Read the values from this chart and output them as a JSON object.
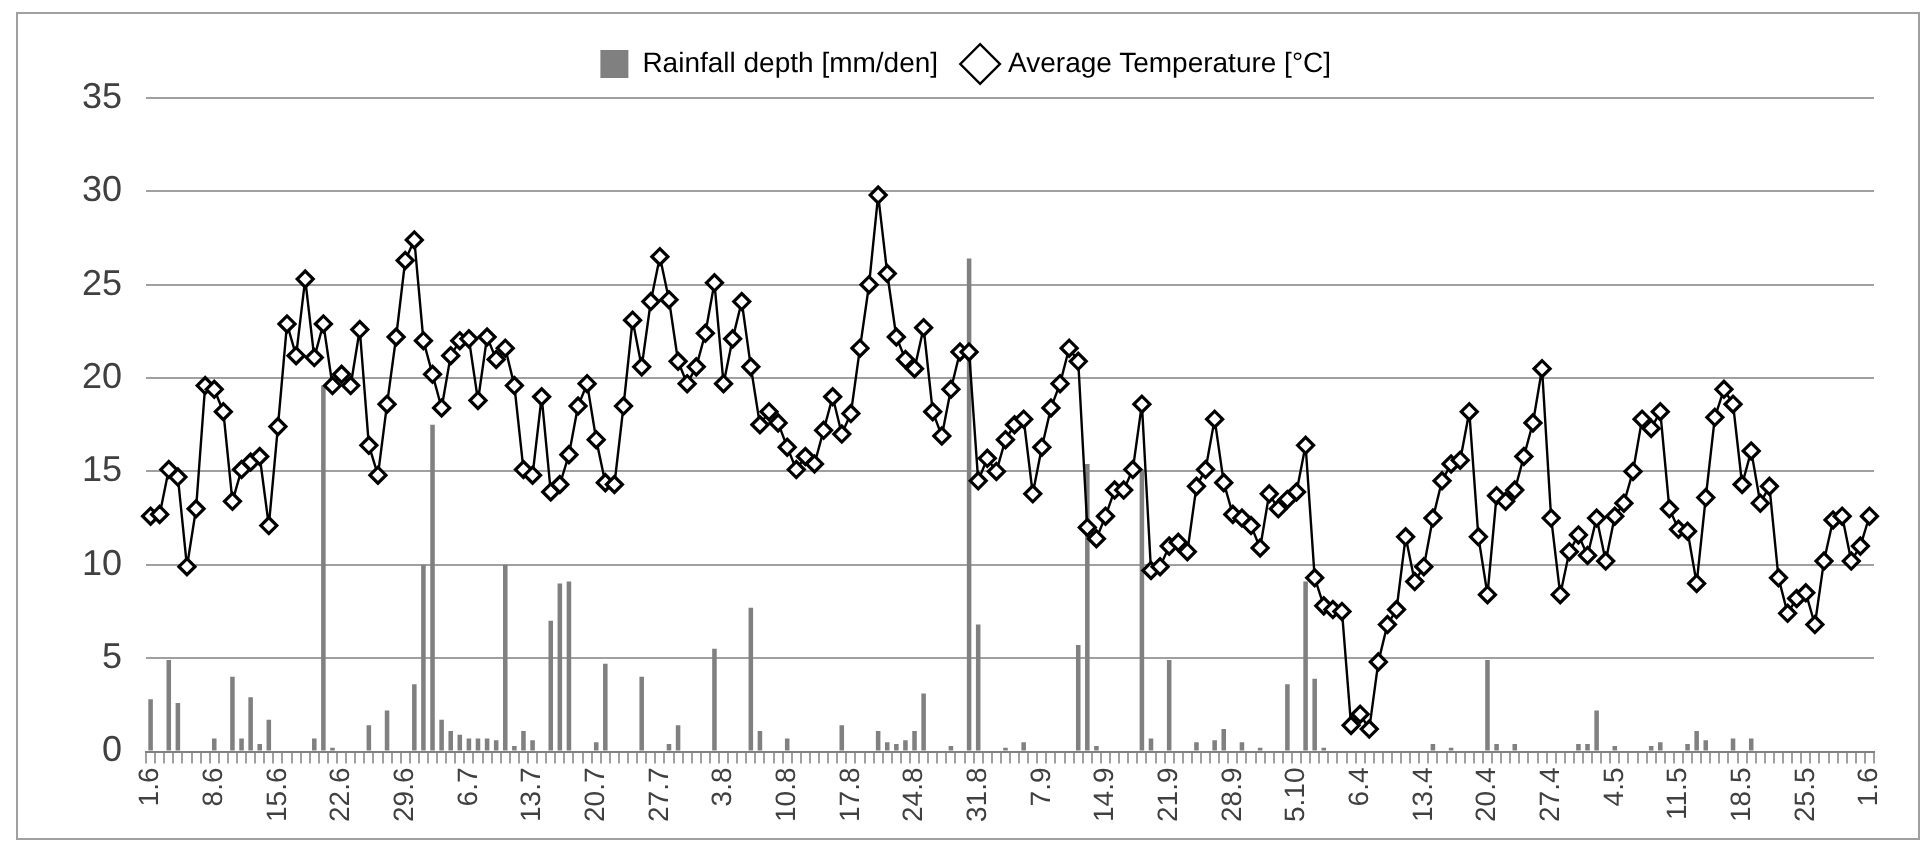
{
  "chart_data": {
    "type": "bar",
    "categories": [
      "1.6",
      null,
      null,
      null,
      null,
      null,
      null,
      "8.6",
      null,
      null,
      null,
      null,
      null,
      null,
      "15.6",
      null,
      null,
      null,
      null,
      null,
      null,
      "22.6",
      null,
      null,
      null,
      null,
      null,
      null,
      "29.6",
      null,
      null,
      null,
      null,
      null,
      null,
      "6.7",
      null,
      null,
      null,
      null,
      null,
      null,
      "13.7",
      null,
      null,
      null,
      null,
      null,
      null,
      "20.7",
      null,
      null,
      null,
      null,
      null,
      null,
      "27.7",
      null,
      null,
      null,
      null,
      null,
      null,
      "3.8",
      null,
      null,
      null,
      null,
      null,
      null,
      "10.8",
      null,
      null,
      null,
      null,
      null,
      null,
      "17.8",
      null,
      null,
      null,
      null,
      null,
      null,
      "24.8",
      null,
      null,
      null,
      null,
      null,
      null,
      "31.8",
      null,
      null,
      null,
      null,
      null,
      null,
      "7.9",
      null,
      null,
      null,
      null,
      null,
      null,
      "14.9",
      null,
      null,
      null,
      null,
      null,
      null,
      "21.9",
      null,
      null,
      null,
      null,
      null,
      null,
      "28.9",
      null,
      null,
      null,
      null,
      null,
      null,
      "5.10",
      null,
      null,
      null,
      null,
      null,
      null,
      "6.4",
      null,
      null,
      null,
      null,
      null,
      null,
      "13.4",
      null,
      null,
      null,
      null,
      null,
      null,
      "20.4",
      null,
      null,
      null,
      null,
      null,
      null,
      "27.4",
      null,
      null,
      null,
      null,
      null,
      null,
      "4.5",
      null,
      null,
      null,
      null,
      null,
      null,
      "11.5",
      null,
      null,
      null,
      null,
      null,
      null,
      "18.5",
      null,
      null,
      null,
      null,
      null,
      null,
      "25.5",
      null,
      null,
      null,
      null,
      null,
      null,
      "1.6"
    ],
    "series": [
      {
        "name": "Rainfall depth [mm/den]",
        "color": "#808080",
        "values": [
          2.8,
          0,
          4.9,
          2.6,
          0,
          0,
          0,
          0.7,
          0,
          4.0,
          0.7,
          2.9,
          0.4,
          1.7,
          0,
          0,
          0,
          0,
          0.7,
          19.6,
          0.2,
          0,
          0,
          0,
          1.4,
          0,
          2.2,
          0,
          0,
          3.6,
          10.0,
          17.5,
          1.7,
          1.1,
          0.9,
          0.7,
          0.7,
          0.7,
          0.6,
          10.0,
          0.3,
          1.1,
          0.6,
          0,
          7.0,
          9.0,
          9.1,
          0,
          0,
          0.5,
          4.7,
          0,
          0,
          0,
          4.0,
          0,
          0,
          0.4,
          1.4,
          0,
          0,
          0,
          5.5,
          0,
          0,
          0,
          7.7,
          1.1,
          0,
          0,
          0.7,
          0,
          0,
          0,
          0,
          0,
          1.4,
          0,
          0,
          0,
          1.1,
          0.5,
          0.4,
          0.6,
          1.1,
          3.1,
          0,
          0,
          0.3,
          0,
          26.4,
          6.8,
          0,
          0,
          0.2,
          0,
          0.5,
          0,
          0,
          0,
          0,
          0,
          5.7,
          15.4,
          0.3,
          0,
          0,
          0,
          0,
          15.1,
          0.7,
          0,
          4.9,
          0,
          0,
          0.5,
          0,
          0.6,
          1.2,
          0,
          0.5,
          0,
          0.2,
          0,
          0,
          3.6,
          0,
          9.1,
          3.9,
          0.2,
          0,
          0,
          0,
          0,
          0,
          0,
          0,
          0,
          0,
          0,
          0,
          0.4,
          0,
          0.2,
          0,
          0,
          0,
          4.9,
          0.4,
          0,
          0.4,
          0,
          0,
          0,
          0,
          0,
          0,
          0.4,
          0.4,
          2.2,
          0,
          0.3,
          0,
          0,
          0,
          0.3,
          0.5,
          0,
          0,
          0.4,
          1.1,
          0.6,
          0,
          0,
          0.7,
          0,
          0.7,
          0,
          0,
          0,
          0,
          0,
          0,
          0,
          0,
          0,
          0,
          0,
          0,
          0
        ]
      },
      {
        "name": "Average Temperature [°C]",
        "type": "line",
        "color": "#000000",
        "marker": "diamond",
        "values": [
          12.6,
          12.7,
          15.1,
          14.7,
          9.9,
          13.0,
          19.6,
          19.4,
          18.2,
          13.4,
          15.1,
          15.5,
          15.8,
          12.1,
          17.4,
          22.9,
          21.2,
          25.3,
          21.1,
          22.9,
          19.6,
          20.2,
          19.6,
          22.6,
          16.4,
          14.8,
          18.6,
          22.2,
          26.3,
          27.4,
          22.0,
          20.2,
          18.4,
          21.2,
          22.0,
          22.1,
          18.8,
          22.2,
          21.0,
          21.6,
          19.6,
          15.1,
          14.8,
          19.0,
          13.9,
          14.3,
          15.9,
          18.5,
          19.7,
          16.7,
          14.4,
          14.3,
          18.5,
          23.1,
          20.6,
          24.1,
          26.5,
          24.2,
          20.9,
          19.7,
          20.6,
          22.4,
          25.1,
          19.7,
          22.1,
          24.1,
          20.6,
          17.5,
          18.2,
          17.6,
          16.3,
          15.1,
          15.8,
          15.4,
          17.2,
          19.0,
          17.0,
          18.1,
          21.6,
          25.0,
          29.8,
          25.6,
          22.2,
          21.0,
          20.5,
          22.7,
          18.2,
          16.9,
          19.4,
          21.4,
          21.4,
          14.5,
          15.7,
          15.0,
          16.7,
          17.5,
          17.8,
          13.8,
          16.3,
          18.4,
          19.7,
          21.6,
          20.9,
          12.0,
          11.4,
          12.6,
          14.0,
          14.0,
          15.1,
          18.6,
          9.7,
          9.9,
          11.0,
          11.2,
          10.7,
          14.2,
          15.1,
          17.8,
          14.4,
          12.7,
          12.5,
          12.1,
          10.9,
          13.8,
          13.0,
          13.5,
          13.9,
          16.4,
          9.3,
          7.8,
          7.6,
          7.5,
          1.4,
          2.0,
          1.2,
          4.8,
          6.8,
          7.6,
          11.5,
          9.1,
          9.9,
          12.5,
          14.5,
          15.4,
          15.6,
          18.2,
          11.5,
          8.4,
          13.7,
          13.4,
          14.0,
          15.8,
          17.6,
          20.5,
          12.5,
          8.4,
          10.7,
          11.6,
          10.5,
          12.5,
          10.2,
          12.6,
          13.3,
          15.0,
          17.8,
          17.3,
          18.2,
          13.0,
          11.9,
          11.8,
          9.0,
          13.6,
          17.9,
          19.4,
          18.6,
          14.3,
          16.1,
          13.3,
          14.2,
          9.3,
          7.4,
          8.2,
          8.5,
          6.8,
          10.2,
          12.4,
          12.6,
          10.2,
          11.0,
          12.6
        ]
      }
    ],
    "ylim": [
      0,
      35
    ],
    "yticks": [
      0,
      5,
      10,
      15,
      20,
      25,
      30,
      35
    ],
    "grid": "y",
    "legend": "top"
  }
}
